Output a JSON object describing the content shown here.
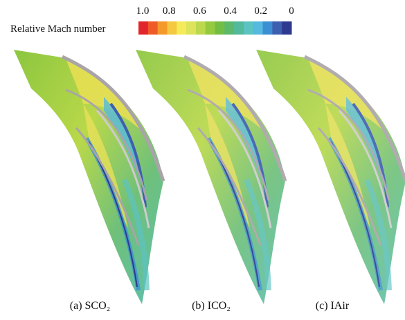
{
  "colorbar": {
    "title": "Relative Mach number",
    "ticks": [
      {
        "value": 1,
        "label": "1.0"
      },
      {
        "value": 0.8,
        "label": "0.8"
      },
      {
        "value": 0.6,
        "label": "0.6"
      },
      {
        "value": 0.4,
        "label": "0.4"
      },
      {
        "value": 0.2,
        "label": "0.2"
      },
      {
        "value": 0,
        "label": "0"
      }
    ],
    "colors": [
      "#e0262a",
      "#ef5a28",
      "#f39a2b",
      "#f5c842",
      "#f5eb5a",
      "#dde35a",
      "#bcd84c",
      "#95c93f",
      "#72be45",
      "#5cb96c",
      "#52b99b",
      "#5cc3c2",
      "#55b9e0",
      "#3b8fd2",
      "#3c5fb0",
      "#2d3a8f"
    ]
  },
  "panels": [
    {
      "caption": "(a) SCO₂"
    },
    {
      "caption": "(b) ICO₂"
    },
    {
      "caption": "(c) IAir"
    }
  ]
}
